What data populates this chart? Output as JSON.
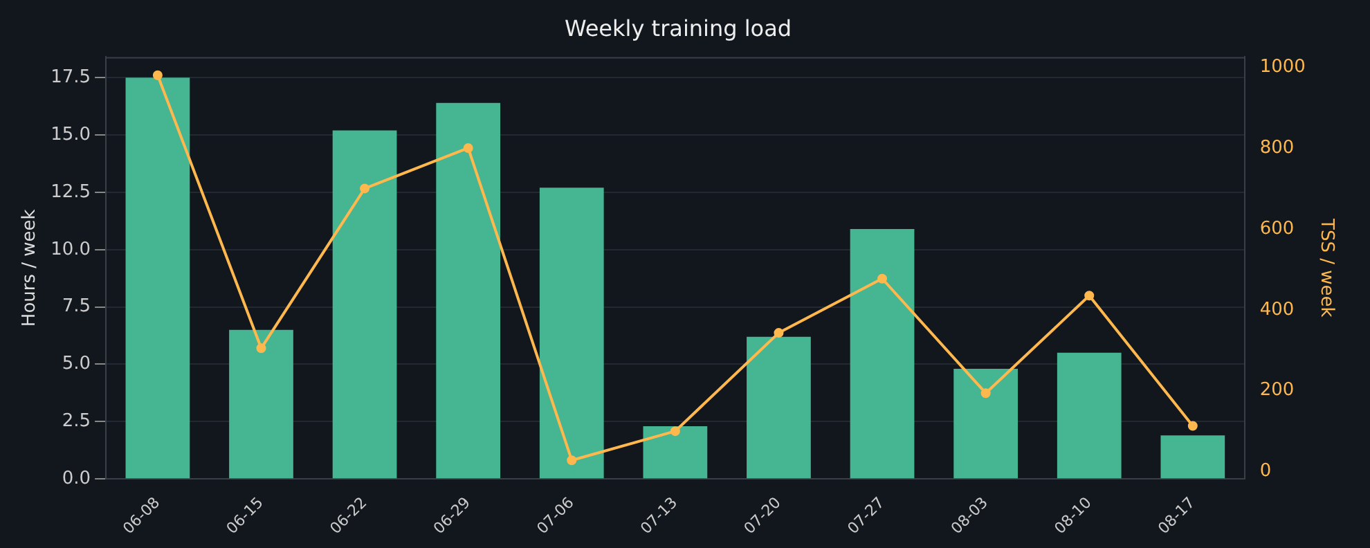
{
  "chart_data": {
    "type": "bar",
    "title": "Weekly training load",
    "ylabel": "Hours / week",
    "y2label": "TSS / week",
    "categories": [
      "06-08",
      "06-15",
      "06-22",
      "06-29",
      "07-06",
      "07-13",
      "07-20",
      "07-27",
      "08-03",
      "08-10",
      "08-17"
    ],
    "series": [
      {
        "color": "#45b592",
        "values": [
          17.5,
          6.5,
          15.2,
          16.4,
          12.7,
          2.3,
          6.2,
          10.9,
          4.8,
          5.5,
          1.9
        ]
      },
      {
        "type": "line",
        "axis": "y2",
        "color": "#ffb84d",
        "values": [
          980,
          305,
          700,
          800,
          28,
          100,
          343,
          477,
          194,
          435,
          113
        ]
      }
    ],
    "ylim": [
      0,
      18.4
    ],
    "yticks": [
      {
        "value": 0,
        "label": "0.0"
      },
      2.5,
      {
        "value": 5,
        "label": "5.0"
      },
      7.5,
      {
        "value": 10,
        "label": "10.0"
      },
      12.5,
      {
        "value": 15,
        "label": "15.0"
      },
      17.5
    ],
    "y2lim": [
      -18,
      1025
    ],
    "y2ticks": [
      0,
      200,
      400,
      600,
      800,
      1000
    ],
    "grid": "y",
    "legend": false,
    "marker": "circle",
    "line_style": "solid"
  }
}
